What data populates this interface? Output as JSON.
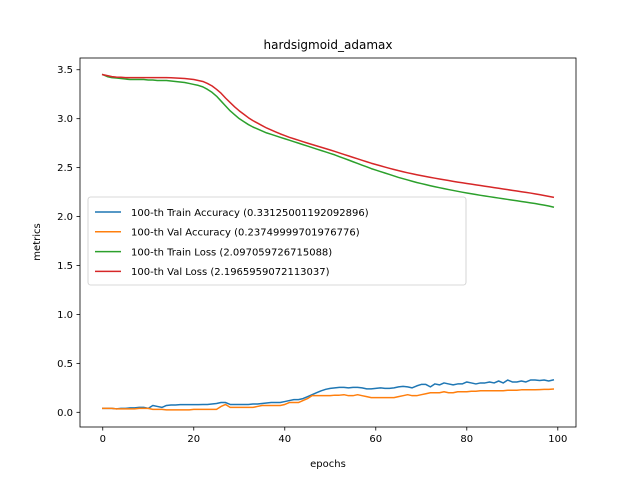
{
  "chart_data": {
    "type": "line",
    "title": "hardsigmoid_adamax",
    "xlabel": "epochs",
    "ylabel": "metrics",
    "xlim": [
      -5,
      104
    ],
    "ylim": [
      -0.15,
      3.62
    ],
    "xticks": [
      0,
      20,
      40,
      60,
      80,
      100
    ],
    "yticks": [
      0.0,
      0.5,
      1.0,
      1.5,
      2.0,
      2.5,
      3.0,
      3.5
    ],
    "xtick_labels": [
      "0",
      "20",
      "40",
      "60",
      "80",
      "100"
    ],
    "ytick_labels": [
      "0.0",
      "0.5",
      "1.0",
      "1.5",
      "2.0",
      "2.5",
      "3.0",
      "3.5"
    ],
    "grid": false,
    "legend_position": "center-left",
    "x": [
      0,
      1,
      2,
      3,
      4,
      5,
      6,
      7,
      8,
      9,
      10,
      11,
      12,
      13,
      14,
      15,
      16,
      17,
      18,
      19,
      20,
      21,
      22,
      23,
      24,
      25,
      26,
      27,
      28,
      29,
      30,
      31,
      32,
      33,
      34,
      35,
      36,
      37,
      38,
      39,
      40,
      41,
      42,
      43,
      44,
      45,
      46,
      47,
      48,
      49,
      50,
      51,
      52,
      53,
      54,
      55,
      56,
      57,
      58,
      59,
      60,
      61,
      62,
      63,
      64,
      65,
      66,
      67,
      68,
      69,
      70,
      71,
      72,
      73,
      74,
      75,
      76,
      77,
      78,
      79,
      80,
      81,
      82,
      83,
      84,
      85,
      86,
      87,
      88,
      89,
      90,
      91,
      92,
      93,
      94,
      95,
      96,
      97,
      98,
      99
    ],
    "series": [
      {
        "name": "100-th Train Accuracy (0.33125001192092896)",
        "color": "#1f77b4",
        "values": [
          0.04,
          0.04,
          0.04,
          0.035,
          0.04,
          0.04,
          0.045,
          0.045,
          0.05,
          0.05,
          0.04,
          0.07,
          0.06,
          0.05,
          0.07,
          0.075,
          0.075,
          0.078,
          0.078,
          0.078,
          0.078,
          0.078,
          0.08,
          0.08,
          0.085,
          0.09,
          0.1,
          0.1,
          0.08,
          0.08,
          0.08,
          0.08,
          0.08,
          0.085,
          0.085,
          0.09,
          0.095,
          0.1,
          0.1,
          0.1,
          0.11,
          0.12,
          0.13,
          0.13,
          0.14,
          0.16,
          0.18,
          0.2,
          0.22,
          0.235,
          0.245,
          0.25,
          0.255,
          0.255,
          0.25,
          0.255,
          0.255,
          0.25,
          0.24,
          0.24,
          0.245,
          0.25,
          0.245,
          0.245,
          0.25,
          0.26,
          0.265,
          0.26,
          0.25,
          0.27,
          0.285,
          0.285,
          0.26,
          0.29,
          0.28,
          0.3,
          0.29,
          0.28,
          0.29,
          0.29,
          0.31,
          0.3,
          0.29,
          0.3,
          0.3,
          0.31,
          0.3,
          0.32,
          0.3,
          0.33,
          0.31,
          0.31,
          0.32,
          0.31,
          0.33,
          0.33,
          0.325,
          0.33,
          0.32,
          0.331
        ]
      },
      {
        "name": "100-th Val Accuracy (0.23749999701976776)",
        "color": "#ff7f0e",
        "values": [
          0.04,
          0.04,
          0.04,
          0.035,
          0.035,
          0.035,
          0.035,
          0.035,
          0.04,
          0.04,
          0.04,
          0.03,
          0.03,
          0.03,
          0.025,
          0.025,
          0.025,
          0.025,
          0.025,
          0.025,
          0.03,
          0.03,
          0.03,
          0.03,
          0.03,
          0.03,
          0.06,
          0.08,
          0.05,
          0.05,
          0.05,
          0.05,
          0.05,
          0.05,
          0.06,
          0.07,
          0.07,
          0.07,
          0.07,
          0.07,
          0.08,
          0.1,
          0.1,
          0.1,
          0.12,
          0.14,
          0.17,
          0.17,
          0.17,
          0.17,
          0.17,
          0.175,
          0.175,
          0.18,
          0.17,
          0.17,
          0.18,
          0.17,
          0.16,
          0.15,
          0.15,
          0.15,
          0.15,
          0.15,
          0.15,
          0.16,
          0.17,
          0.18,
          0.17,
          0.17,
          0.18,
          0.19,
          0.2,
          0.2,
          0.2,
          0.21,
          0.2,
          0.2,
          0.21,
          0.21,
          0.21,
          0.215,
          0.215,
          0.22,
          0.22,
          0.22,
          0.22,
          0.22,
          0.22,
          0.225,
          0.225,
          0.225,
          0.23,
          0.23,
          0.23,
          0.23,
          0.232,
          0.235,
          0.235,
          0.2375
        ]
      },
      {
        "name": "100-th Train Loss (2.097059726715088)",
        "color": "#2ca02c",
        "values": [
          3.45,
          3.43,
          3.42,
          3.415,
          3.41,
          3.405,
          3.4,
          3.4,
          3.4,
          3.4,
          3.395,
          3.395,
          3.39,
          3.39,
          3.39,
          3.385,
          3.38,
          3.375,
          3.37,
          3.36,
          3.35,
          3.34,
          3.325,
          3.3,
          3.27,
          3.23,
          3.18,
          3.13,
          3.08,
          3.04,
          3.0,
          2.97,
          2.94,
          2.915,
          2.895,
          2.875,
          2.855,
          2.84,
          2.825,
          2.81,
          2.795,
          2.78,
          2.765,
          2.75,
          2.735,
          2.72,
          2.705,
          2.69,
          2.675,
          2.66,
          2.645,
          2.63,
          2.612,
          2.595,
          2.578,
          2.56,
          2.543,
          2.525,
          2.508,
          2.49,
          2.475,
          2.46,
          2.445,
          2.43,
          2.415,
          2.4,
          2.387,
          2.374,
          2.361,
          2.348,
          2.337,
          2.326,
          2.315,
          2.305,
          2.295,
          2.285,
          2.276,
          2.267,
          2.258,
          2.249,
          2.241,
          2.233,
          2.225,
          2.217,
          2.21,
          2.203,
          2.196,
          2.189,
          2.182,
          2.175,
          2.168,
          2.161,
          2.154,
          2.147,
          2.14,
          2.133,
          2.125,
          2.117,
          2.108,
          2.097
        ]
      },
      {
        "name": "100-th Val Loss (2.1965959072113037)",
        "color": "#d62728",
        "values": [
          3.45,
          3.44,
          3.43,
          3.425,
          3.423,
          3.42,
          3.42,
          3.42,
          3.42,
          3.42,
          3.42,
          3.42,
          3.42,
          3.42,
          3.42,
          3.418,
          3.416,
          3.413,
          3.41,
          3.405,
          3.4,
          3.39,
          3.38,
          3.36,
          3.335,
          3.3,
          3.26,
          3.21,
          3.165,
          3.12,
          3.08,
          3.045,
          3.01,
          2.98,
          2.955,
          2.93,
          2.905,
          2.885,
          2.865,
          2.845,
          2.828,
          2.81,
          2.795,
          2.78,
          2.765,
          2.75,
          2.736,
          2.722,
          2.708,
          2.694,
          2.68,
          2.665,
          2.65,
          2.635,
          2.62,
          2.605,
          2.59,
          2.575,
          2.56,
          2.545,
          2.532,
          2.519,
          2.506,
          2.493,
          2.481,
          2.469,
          2.458,
          2.447,
          2.437,
          2.427,
          2.418,
          2.409,
          2.4,
          2.392,
          2.384,
          2.376,
          2.368,
          2.36,
          2.352,
          2.345,
          2.338,
          2.331,
          2.324,
          2.317,
          2.31,
          2.303,
          2.296,
          2.289,
          2.282,
          2.275,
          2.268,
          2.261,
          2.254,
          2.247,
          2.24,
          2.232,
          2.224,
          2.215,
          2.206,
          2.197
        ]
      }
    ]
  }
}
